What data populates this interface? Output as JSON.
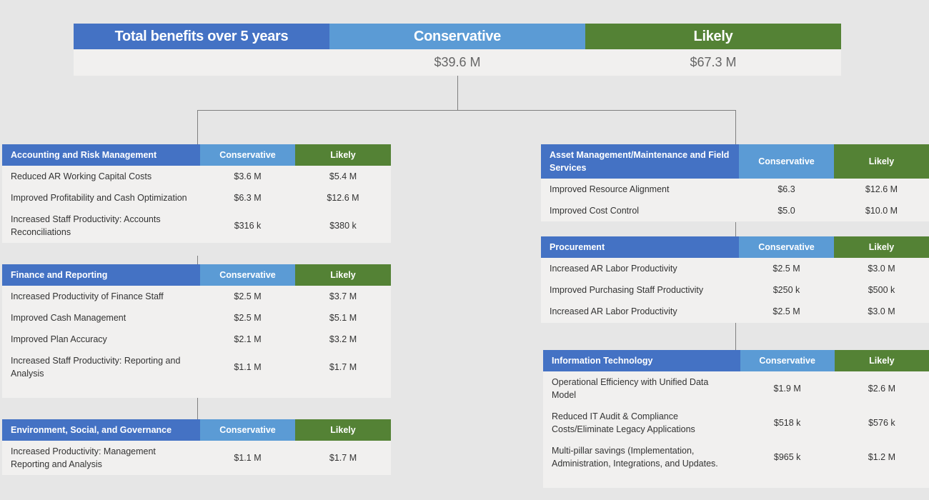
{
  "summary": {
    "title": "Total benefits over 5 years",
    "conservative_label": "Conservative",
    "likely_label": "Likely",
    "conservative_value": "$39.6 M",
    "likely_value": "$67.3 M"
  },
  "colors": {
    "primary_blue": "#4472c4",
    "conservative_blue": "#5b9bd5",
    "likely_green": "#548235",
    "panel": "#f1f0ef",
    "background": "#e6e6e6"
  },
  "tables": [
    {
      "id": "t-arm",
      "side": "L",
      "title": "Accounting and Risk Management",
      "col1": "Conservative",
      "col2": "Likely",
      "rows": [
        {
          "label": "Reduced AR Working Capital Costs",
          "conservative": "$3.6 M",
          "likely": "$5.4 M"
        },
        {
          "label": "Improved Profitability and Cash Optimization",
          "conservative": "$6.3 M",
          "likely": "$12.6 M"
        },
        {
          "label": "Increased Staff Productivity: Accounts Reconciliations",
          "conservative": "$316 k",
          "likely": "$380 k"
        }
      ]
    },
    {
      "id": "t-fin",
      "side": "L",
      "title": "Finance and Reporting",
      "col1": "Conservative",
      "col2": "Likely",
      "rows": [
        {
          "label": "Increased Productivity of Finance Staff",
          "conservative": "$2.5 M",
          "likely": "$3.7 M"
        },
        {
          "label": "Improved Cash Management",
          "conservative": "$2.5 M",
          "likely": "$5.1 M"
        },
        {
          "label": "Improved Plan Accuracy",
          "conservative": "$2.1 M",
          "likely": "$3.2 M"
        },
        {
          "label": "Increased Staff Productivity:  Reporting and Analysis",
          "conservative": "$1.1 M",
          "likely": "$1.7 M"
        }
      ]
    },
    {
      "id": "t-esg",
      "side": "L",
      "title": "Environment, Social, and Governance",
      "col1": "Conservative",
      "col2": "Likely",
      "rows": [
        {
          "label": "Increased Productivity: Management Reporting and Analysis",
          "conservative": "$1.1 M",
          "likely": "$1.7 M"
        }
      ]
    },
    {
      "id": "t-asset",
      "side": "R",
      "title": "Asset Management/Maintenance and Field Services",
      "col1": "Conservative",
      "col2": "Likely",
      "rows": [
        {
          "label": "Improved Resource Alignment",
          "conservative": "$6.3",
          "likely": "$12.6 M"
        },
        {
          "label": "Improved Cost Control",
          "conservative": "$5.0",
          "likely": "$10.0 M"
        }
      ]
    },
    {
      "id": "t-proc",
      "side": "R",
      "title": "Procurement",
      "col1": "Conservative",
      "col2": "Likely",
      "rows": [
        {
          "label": "Increased AR Labor Productivity",
          "conservative": "$2.5 M",
          "likely": "$3.0 M"
        },
        {
          "label": "Improved Purchasing Staff Productivity",
          "conservative": "$250 k",
          "likely": "$500 k"
        },
        {
          "label": "Increased AR Labor Productivity",
          "conservative": "$2.5 M",
          "likely": "$3.0 M"
        }
      ]
    },
    {
      "id": "t-it",
      "side": "R",
      "title": "Information Technology",
      "col1": "Conservative",
      "col2": "Likely",
      "rows": [
        {
          "label": "Operational Efficiency with Unified Data Model",
          "conservative": "$1.9 M",
          "likely": "$2.6 M"
        },
        {
          "label": "Reduced IT Audit & Compliance Costs/Eliminate Legacy Applications",
          "conservative": "$518 k",
          "likely": "$576 k"
        },
        {
          "label": "Multi-pillar savings (Implementation, Administration, Integrations, and Updates.",
          "conservative": "$965 k",
          "likely": "$1.2 M"
        }
      ]
    }
  ]
}
